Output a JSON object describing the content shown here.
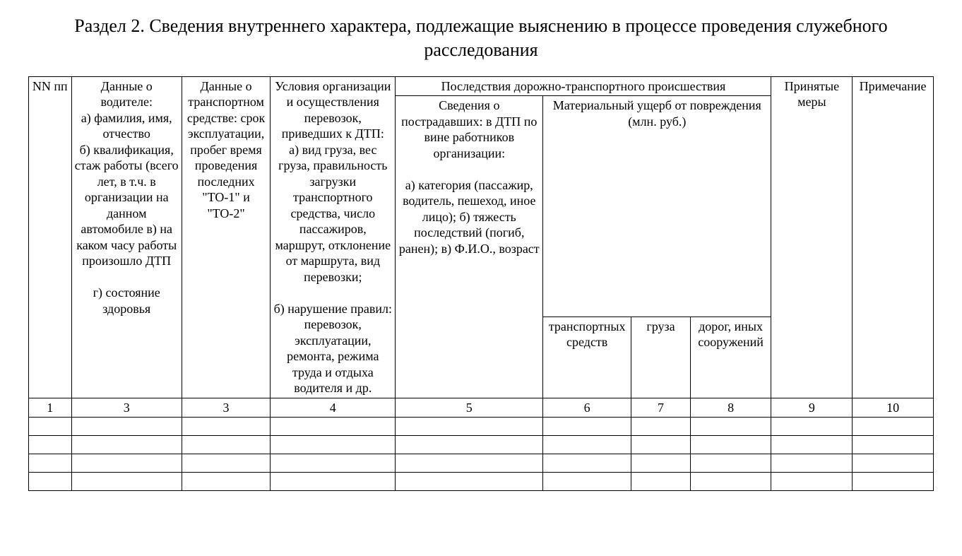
{
  "title": "Раздел 2. Сведения внутреннего характера, подлежащие выяснению в процессе проведения служебного расследования",
  "headers": {
    "col1": "NN пп",
    "col2": "Данные о водителе:\nа) фамилия, имя, отчество\nб) квалификация, стаж работы (всего лет, в т.ч. в организации на данном автомобиле в) на каком часу работы произошло ДТП\n\nг) состояние здоровья",
    "col3": "Данные о транспортном средстве: срок эксплуатации, пробег время проведения последних \"ТО-1\" и \"ТО-2\"",
    "col4": "Условия организации и осуществления перевозок, приведших к ДТП:\nа) вид груза, вес груза, правильность загрузки транспортного средства, число пассажиров, маршрут, отклонение от маршрута, вид перевозки;\n\nб) нарушение правил: перевозок, эксплуатации, ремонта, режима труда и отдыха водителя и др.",
    "col5_group": "Последствия дорожно-транспортного происшествия",
    "col5": "Сведения о пострадавших: в ДТП по вине работников организации:\n\nа) категория (пассажир, водитель, пешеход, иное лицо); б) тяжесть последствий (погиб, ранен); в) Ф.И.О., возраст",
    "col678_group": "Материальный ущерб от повреждения (млн. руб.)",
    "col6": "транспортных средств",
    "col7": "груза",
    "col8": "дорог, иных сооружений",
    "col9": "Принятые меры",
    "col10": "Примечание"
  },
  "numrow": {
    "n1": "1",
    "n2": "3",
    "n3": "3",
    "n4": "4",
    "n5": "5",
    "n6": "6",
    "n7": "7",
    "n8": "8",
    "n9": "9",
    "n10": "10"
  },
  "empty_rows_count": 4,
  "style": {
    "background_color": "#ffffff",
    "text_color": "#000000",
    "border_color": "#000000",
    "title_fontsize": 26,
    "cell_fontsize": 18,
    "font_family": "Times New Roman"
  }
}
